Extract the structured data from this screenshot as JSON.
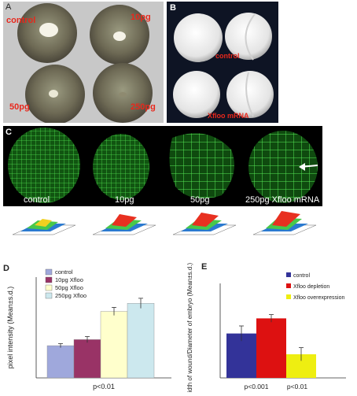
{
  "panel_a": {
    "label": "A",
    "labels": [
      "control",
      "10pg",
      "50pg",
      "250pg"
    ]
  },
  "panel_b": {
    "label": "B",
    "labels": [
      "control",
      "Xfloo mRNA"
    ]
  },
  "panel_c": {
    "label": "C",
    "labels": [
      "control",
      "10pg",
      "50pg",
      "250pg Xfloo mRNA"
    ]
  },
  "colors": {
    "bar_control": "#9fa8dc",
    "bar_10pg": "#993366",
    "bar_50pg": "#ffffcc",
    "bar_250pg": "#cce8ee",
    "e_control": "#333399",
    "e_depletion": "#dd1111",
    "e_over": "#eeee11",
    "label_red": "#e8281c",
    "fluor_green": "#3ccc3c"
  },
  "chart_data": [
    {
      "type": "bar",
      "panel": "D",
      "ylabel": "pixel intensity (Mean±s.d.)",
      "xlabel": "p<0.01",
      "ylim": [
        0,
        1
      ],
      "categories": [
        "control",
        "10pg Xfloo",
        "50pg Xfloo",
        "250pg Xfloo"
      ],
      "values": [
        0.32,
        0.38,
        0.66,
        0.74
      ],
      "errors": [
        0.02,
        0.03,
        0.04,
        0.05
      ],
      "legend": [
        "control",
        "10pg Xfloo",
        "50pg Xfloo",
        "250pg Xfloo"
      ],
      "grid": false
    },
    {
      "type": "bar",
      "panel": "E",
      "ylabel": "Width of wound/Diameter of embryo (Mean±s.d.)",
      "xlabels": [
        "p<0.001",
        "p<0.01"
      ],
      "ylim": [
        0,
        1
      ],
      "categories": [
        "control",
        "Xfloo depletion",
        "Xfloo overexpression"
      ],
      "values": [
        0.47,
        0.63,
        0.25
      ],
      "errors": [
        0.08,
        0.04,
        0.07
      ],
      "legend": [
        "control",
        "Xfloo depletion",
        "Xfloo overexpression"
      ],
      "grid": false
    }
  ]
}
